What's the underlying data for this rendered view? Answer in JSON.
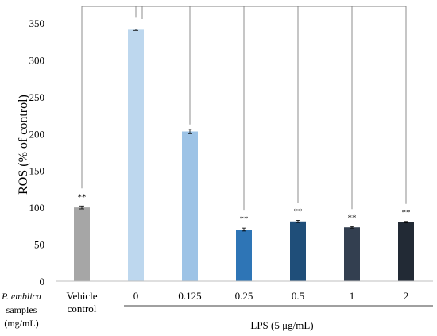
{
  "chart_data": {
    "type": "bar",
    "ylabel": "ROS (% of control)",
    "yticks": [
      0,
      50,
      100,
      150,
      200,
      250,
      300,
      350
    ],
    "ylim": [
      0,
      350
    ],
    "grid": false,
    "row_label": [
      "P. emblica",
      "samples",
      "(mg/mL)"
    ],
    "categories": [
      [
        "Vehicle",
        "control"
      ],
      [
        "0"
      ],
      [
        "0.125"
      ],
      [
        "0.25"
      ],
      [
        "0.5"
      ],
      [
        "1"
      ],
      [
        "2"
      ]
    ],
    "values": [
      100,
      341,
      203,
      70,
      81,
      73,
      80
    ],
    "errors": [
      2,
      1,
      3,
      2,
      1.5,
      1,
      1
    ],
    "significance": [
      "**",
      "",
      "",
      "**",
      "**",
      "**",
      "**"
    ],
    "colors": [
      "#a6a6a6",
      "#bdd7ee",
      "#9dc3e6",
      "#2e75b6",
      "#1f4e79",
      "#333f50",
      "#222a35"
    ],
    "group_label": "LPS (5 μg/mL)",
    "comparison_reference_index": 1
  }
}
